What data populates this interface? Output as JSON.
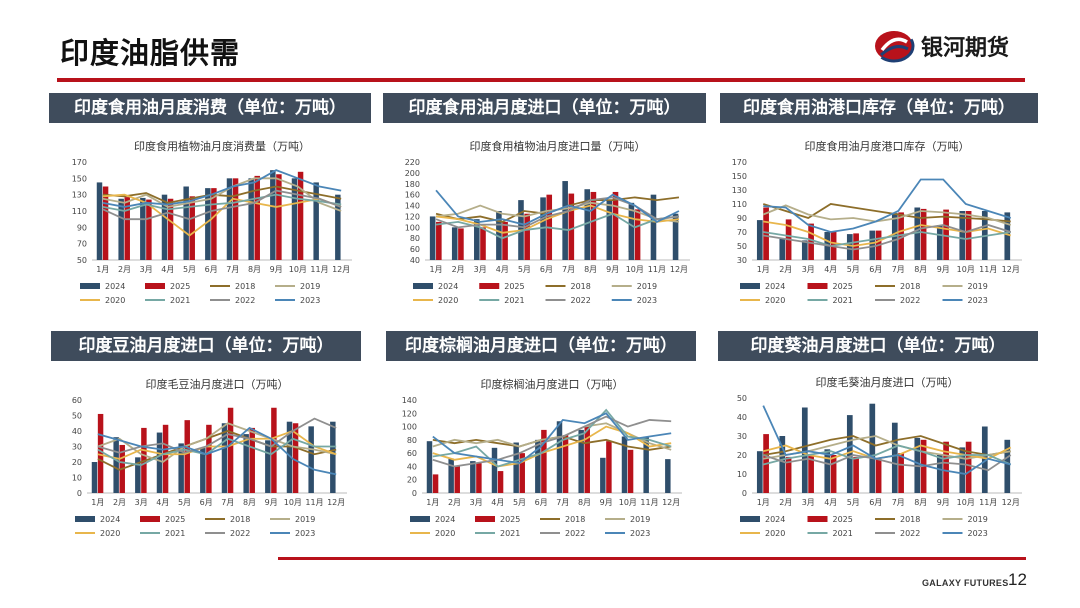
{
  "page": {
    "title": "印度油脂供需"
  },
  "brand": {
    "name": "银河期货",
    "footer": "GALAXY FUTURES",
    "page_number": "12"
  },
  "colors": {
    "primary_red": "#b8121b",
    "header_bg": "#3f4c5c",
    "series": {
      "2024": "#2f4e6b",
      "2025": "#b8121b",
      "2018": "#8d6e2a",
      "2019": "#b5ae8a",
      "2020": "#e8b64c",
      "2021": "#76a8a4",
      "2022": "#8f8f8f",
      "2023": "#4b86b7"
    }
  },
  "panels": [
    {
      "header": "印度食用油月度消费（单位：万吨）"
    },
    {
      "header": "印度食用油月度进口（单位：万吨）"
    },
    {
      "header": "印度食用油港口库存（单位：万吨）"
    },
    {
      "header": "印度豆油月度进口（单位：万吨）"
    },
    {
      "header": "印度棕榈油月度进口（单位：万吨）"
    },
    {
      "header": "印度葵油月度进口（单位：万吨）"
    }
  ],
  "chart_data": [
    {
      "type": "bar",
      "title": "印度食用植物油月度消费量（万吨）",
      "categories": [
        "1月",
        "2月",
        "3月",
        "4月",
        "5月",
        "6月",
        "7月",
        "8月",
        "9月",
        "10月",
        "11月",
        "12月"
      ],
      "ylim": [
        50,
        170
      ],
      "yticks": [
        50,
        70,
        90,
        110,
        130,
        150,
        170
      ],
      "bars": [
        {
          "name": "2024",
          "values": [
            145,
            125,
            126,
            130,
            140,
            138,
            150,
            150,
            160,
            150,
            145,
            130
          ]
        },
        {
          "name": "2025",
          "values": [
            140,
            127,
            124,
            125,
            128,
            138,
            150,
            153,
            155,
            158
          ]
        }
      ],
      "lines": [
        {
          "name": "2018",
          "values": [
            130,
            128,
            132,
            120,
            125,
            130,
            128,
            135,
            140,
            135,
            130,
            125
          ]
        },
        {
          "name": "2019",
          "values": [
            125,
            120,
            130,
            115,
            120,
            125,
            140,
            150,
            150,
            140,
            120,
            110
          ]
        },
        {
          "name": "2020",
          "values": [
            128,
            130,
            120,
            100,
            80,
            100,
            125,
            120,
            115,
            120,
            125,
            115
          ]
        },
        {
          "name": "2021",
          "values": [
            115,
            110,
            118,
            112,
            115,
            118,
            120,
            125,
            130,
            125,
            122,
            118
          ]
        },
        {
          "name": "2022",
          "values": [
            112,
            100,
            100,
            108,
            100,
            110,
            115,
            120,
            135,
            130,
            125,
            115
          ]
        },
        {
          "name": "2023",
          "values": [
            120,
            115,
            120,
            118,
            122,
            130,
            140,
            145,
            160,
            150,
            140,
            135
          ]
        }
      ],
      "legend": [
        "2024",
        "2025",
        "2018",
        "2019",
        "2020",
        "2021",
        "2022",
        "2023"
      ]
    },
    {
      "type": "bar",
      "title": "印度食用植物油月度进口量（万吨）",
      "categories": [
        "1月",
        "2月",
        "3月",
        "4月",
        "5月",
        "6月",
        "7月",
        "8月",
        "9月",
        "10月",
        "11月",
        "12月"
      ],
      "ylim": [
        40,
        220
      ],
      "yticks": [
        40,
        60,
        80,
        100,
        120,
        140,
        160,
        180,
        200,
        220
      ],
      "bars": [
        {
          "name": "2024",
          "values": [
            120,
            100,
            115,
            130,
            150,
            155,
            185,
            170,
            150,
            145,
            160,
            125
          ]
        },
        {
          "name": "2025",
          "values": [
            110,
            98,
            100,
            110,
            125,
            160,
            162,
            165,
            165,
            133
          ]
        }
      ],
      "lines": [
        {
          "name": "2018",
          "values": [
            125,
            115,
            120,
            110,
            130,
            125,
            140,
            150,
            150,
            155,
            150,
            155
          ]
        },
        {
          "name": "2019",
          "values": [
            120,
            125,
            140,
            125,
            120,
            130,
            135,
            145,
            140,
            130,
            115,
            110
          ]
        },
        {
          "name": "2020",
          "values": [
            120,
            115,
            105,
            90,
            95,
            115,
            130,
            140,
            125,
            115,
            110,
            115
          ]
        },
        {
          "name": "2021",
          "values": [
            105,
            110,
            100,
            80,
            95,
            100,
            95,
            110,
            125,
            100,
            115,
            120
          ]
        },
        {
          "name": "2022",
          "values": [
            115,
            100,
            105,
            105,
            100,
            120,
            130,
            150,
            155,
            140,
            115,
            120
          ]
        },
        {
          "name": "2023",
          "values": [
            168,
            120,
            110,
            115,
            105,
            125,
            140,
            130,
            160,
            140,
            110,
            130
          ]
        }
      ],
      "legend": [
        "2024",
        "2025",
        "2018",
        "2019",
        "2020",
        "2021",
        "2022",
        "2023"
      ]
    },
    {
      "type": "bar",
      "title": "印度食用油月度港口库存（万吨）",
      "categories": [
        "1月",
        "2月",
        "3月",
        "4月",
        "5月",
        "6月",
        "7月",
        "8月",
        "9月",
        "10月",
        "11月",
        "12月"
      ],
      "ylim": [
        30,
        170
      ],
      "yticks": [
        30,
        50,
        70,
        90,
        110,
        130,
        150,
        170
      ],
      "bars": [
        {
          "name": "2024",
          "values": [
            87,
            60,
            58,
            70,
            67,
            72,
            97,
            105,
            80,
            100,
            100,
            98
          ]
        },
        {
          "name": "2025",
          "values": [
            105,
            88,
            82,
            71,
            68,
            72,
            98,
            103,
            102,
            100
          ]
        }
      ],
      "lines": [
        {
          "name": "2018",
          "values": [
            110,
            100,
            90,
            110,
            105,
            100,
            95,
            90,
            92,
            90,
            88,
            85
          ]
        },
        {
          "name": "2019",
          "values": [
            95,
            108,
            95,
            88,
            90,
            85,
            90,
            100,
            98,
            95,
            90,
            80
          ]
        },
        {
          "name": "2020",
          "values": [
            85,
            80,
            70,
            55,
            50,
            55,
            70,
            80,
            75,
            70,
            75,
            65
          ]
        },
        {
          "name": "2021",
          "values": [
            70,
            65,
            60,
            50,
            55,
            60,
            65,
            70,
            65,
            60,
            65,
            70
          ]
        },
        {
          "name": "2022",
          "values": [
            65,
            60,
            55,
            50,
            45,
            50,
            60,
            75,
            80,
            70,
            80,
            70
          ]
        },
        {
          "name": "2023",
          "values": [
            107,
            105,
            80,
            70,
            75,
            85,
            100,
            145,
            145,
            110,
            100,
            90
          ]
        }
      ],
      "legend": [
        "2024",
        "2025",
        "2018",
        "2019",
        "2020",
        "2021",
        "2022",
        "2023"
      ]
    },
    {
      "type": "bar",
      "title": "印度毛豆油月度进口（万吨）",
      "categories": [
        "1月",
        "2月",
        "3月",
        "4月",
        "5月",
        "6月",
        "7月",
        "8月",
        "9月",
        "10月",
        "11月",
        "12月"
      ],
      "ylim": [
        0,
        60
      ],
      "yticks": [
        0,
        10,
        20,
        30,
        40,
        50,
        60
      ],
      "bars": [
        {
          "name": "2024",
          "values": [
            20,
            36,
            23,
            39,
            32,
            29,
            45,
            38,
            34,
            46,
            43,
            46
          ]
        },
        {
          "name": "2025",
          "values": [
            51,
            31,
            42,
            44,
            47,
            44,
            55,
            42,
            55,
            45
          ]
        }
      ],
      "lines": [
        {
          "name": "2018",
          "values": [
            22,
            15,
            20,
            25,
            30,
            35,
            40,
            35,
            30,
            30,
            25,
            28
          ]
        },
        {
          "name": "2019",
          "values": [
            30,
            35,
            25,
            20,
            30,
            35,
            45,
            40,
            35,
            30,
            28,
            25
          ]
        },
        {
          "name": "2020",
          "values": [
            25,
            22,
            28,
            25,
            25,
            30,
            30,
            35,
            35,
            40,
            30,
            25
          ]
        },
        {
          "name": "2021",
          "values": [
            28,
            20,
            18,
            25,
            28,
            25,
            35,
            30,
            25,
            35,
            30,
            30
          ]
        },
        {
          "name": "2022",
          "values": [
            30,
            26,
            30,
            32,
            26,
            30,
            38,
            35,
            30,
            40,
            48,
            42
          ]
        },
        {
          "name": "2023",
          "values": [
            38,
            34,
            30,
            28,
            30,
            25,
            30,
            42,
            35,
            22,
            15,
            12
          ]
        }
      ],
      "legend": [
        "2024",
        "2025",
        "2018",
        "2019",
        "2020",
        "2021",
        "2022",
        "2023"
      ]
    },
    {
      "type": "bar",
      "title": "印度棕榈油月度进口（万吨）",
      "categories": [
        "1月",
        "2月",
        "3月",
        "4月",
        "5月",
        "6月",
        "7月",
        "8月",
        "9月",
        "10月",
        "11月",
        "12月"
      ],
      "ylim": [
        0,
        140
      ],
      "yticks": [
        0,
        20,
        40,
        60,
        80,
        100,
        120,
        140
      ],
      "bars": [
        {
          "name": "2024",
          "values": [
            78,
            52,
            48,
            68,
            76,
            80,
            108,
            95,
            53,
            85,
            85,
            51
          ]
        },
        {
          "name": "2025",
          "values": [
            28,
            40,
            45,
            33,
            60,
            95,
            87,
            101,
            78,
            65
          ]
        }
      ],
      "lines": [
        {
          "name": "2018",
          "values": [
            80,
            75,
            80,
            75,
            70,
            80,
            85,
            75,
            80,
            70,
            65,
            70
          ]
        },
        {
          "name": "2019",
          "values": [
            70,
            80,
            75,
            80,
            70,
            80,
            85,
            100,
            105,
            90,
            75,
            65
          ]
        },
        {
          "name": "2020",
          "values": [
            60,
            50,
            55,
            40,
            45,
            60,
            70,
            80,
            100,
            90,
            70,
            75
          ]
        },
        {
          "name": "2021",
          "values": [
            55,
            60,
            70,
            40,
            50,
            60,
            80,
            90,
            125,
            85,
            80,
            70
          ]
        },
        {
          "name": "2022",
          "values": [
            50,
            40,
            45,
            50,
            60,
            75,
            85,
            100,
            115,
            100,
            110,
            108
          ]
        },
        {
          "name": "2023",
          "values": [
            85,
            60,
            55,
            50,
            45,
            70,
            110,
            105,
            120,
            80,
            85,
            90
          ]
        }
      ],
      "legend": [
        "2024",
        "2025",
        "2018",
        "2019",
        "2020",
        "2021",
        "2022",
        "2023"
      ]
    },
    {
      "type": "bar",
      "title": "印度毛葵油月度进口（万吨）",
      "categories": [
        "1月",
        "2月",
        "3月",
        "4月",
        "5月",
        "6月",
        "7月",
        "8月",
        "9月",
        "10月",
        "11月",
        "12月"
      ],
      "ylim": [
        0,
        50
      ],
      "yticks": [
        0,
        10,
        20,
        30,
        40,
        50
      ],
      "bars": [
        {
          "name": "2024",
          "values": [
            22,
            30,
            45,
            23,
            41,
            47,
            37,
            29,
            20,
            24,
            35,
            28
          ]
        },
        {
          "name": "2025",
          "values": [
            31,
            19,
            20,
            20,
            19,
            18,
            21,
            28,
            27,
            27
          ]
        }
      ],
      "lines": [
        {
          "name": "2018",
          "values": [
            20,
            22,
            25,
            28,
            30,
            25,
            28,
            30,
            26,
            22,
            20,
            22
          ]
        },
        {
          "name": "2019",
          "values": [
            18,
            20,
            22,
            25,
            28,
            30,
            25,
            22,
            20,
            18,
            20,
            22
          ]
        },
        {
          "name": "2020",
          "values": [
            22,
            25,
            20,
            18,
            22,
            18,
            20,
            25,
            22,
            20,
            18,
            24
          ]
        },
        {
          "name": "2021",
          "values": [
            15,
            18,
            20,
            22,
            18,
            20,
            25,
            22,
            18,
            20,
            20,
            15
          ]
        },
        {
          "name": "2022",
          "values": [
            20,
            16,
            18,
            15,
            20,
            18,
            15,
            14,
            16,
            15,
            12,
            20
          ]
        },
        {
          "name": "2023",
          "values": [
            46,
            20,
            22,
            20,
            25,
            18,
            20,
            15,
            12,
            10,
            18,
            15
          ]
        }
      ],
      "legend": [
        "2024",
        "2025",
        "2018",
        "2019",
        "2020",
        "2021",
        "2022",
        "2023"
      ]
    }
  ]
}
